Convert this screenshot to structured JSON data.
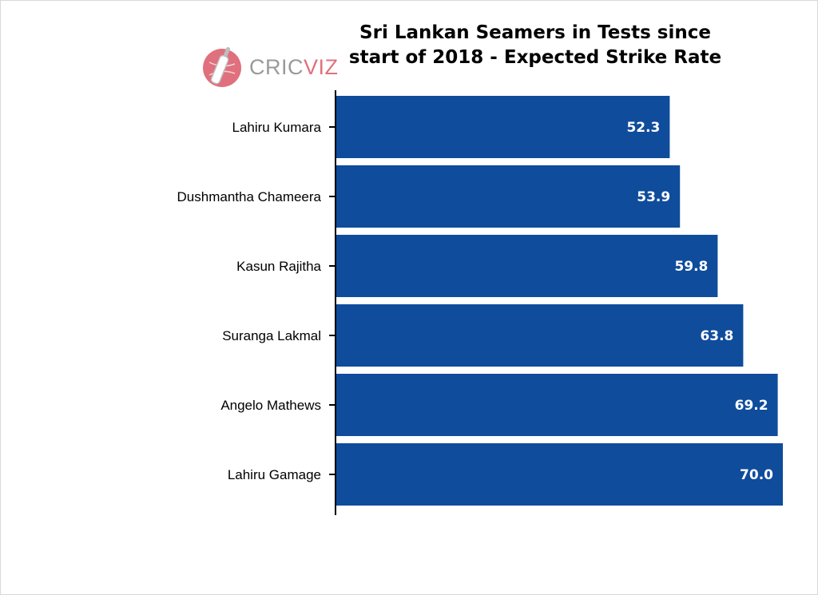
{
  "branding": {
    "logo_part1": "CRIC",
    "logo_part2": "VIZ",
    "logo_icon": "cricket-bat-ball-icon",
    "logo_colors": {
      "primary": "#e0707d",
      "secondary": "#9a9a9a"
    }
  },
  "chart_data": {
    "type": "bar",
    "orientation": "horizontal",
    "title_lines": [
      "Sri Lankan Seamers in Tests since",
      "start of 2018 - Expected Strike Rate"
    ],
    "categories": [
      "Lahiru Kumara",
      "Dushmantha Chameera",
      "Kasun Rajitha",
      "Suranga Lakmal",
      "Angelo Mathews",
      "Lahiru Gamage"
    ],
    "values": [
      52.3,
      53.9,
      59.8,
      63.8,
      69.2,
      70.0
    ],
    "value_labels": [
      "52.3",
      "53.9",
      "59.8",
      "63.8",
      "69.2",
      "70.0"
    ],
    "xlim": [
      0,
      70.0
    ],
    "bar_color": "#0f4c9c",
    "label_color": "#ffffff",
    "grid": false,
    "xlabel": "",
    "ylabel": ""
  }
}
